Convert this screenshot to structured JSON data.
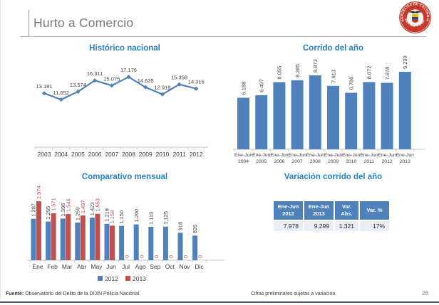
{
  "slide": {
    "title": "Hurto a Comercio",
    "seal": {
      "name": "República de Colombia",
      "top_text": "REPÚBLICA DE COLOMBIA",
      "bottom_text": "LIBERTAD Y ORDEN"
    },
    "footer": {
      "source_label": "Fuente:",
      "source_text": "Observatorio del Delito de la DIJIN Policía Nacional.",
      "note": "Cifras preliminares sujetas a variación.",
      "page_number": "26"
    }
  },
  "colors": {
    "accent_blue": "#2781C4",
    "bar_blue": "#4F81BD",
    "bar_red": "#C0504D",
    "label_dark": "#3F3F3F",
    "axis_gray": "#C6C6C6",
    "seal_red": "#C5392D"
  },
  "chart_data": [
    {
      "id": "historico-nacional",
      "type": "line",
      "title": "Histórico nacional",
      "categories": [
        "2003",
        "2004",
        "2005",
        "2006",
        "2007",
        "2008",
        "2009",
        "2010",
        "2011",
        "2012"
      ],
      "values": [
        13181,
        11652,
        13574,
        16311,
        15075,
        17176,
        14635,
        12918,
        15358,
        14316
      ],
      "point_labels": [
        "13.181",
        "11.652",
        "13.574",
        "16.311",
        "15.075",
        "17.176",
        "14.635",
        "12.918",
        "15.358",
        "14.316"
      ],
      "ylim": [
        0,
        18000
      ],
      "grid": false,
      "legend": "none",
      "line_color": "#4F81BD",
      "marker": "diamond"
    },
    {
      "id": "corrido-del-ano",
      "type": "bar",
      "title": "Corrido del año",
      "categories": [
        [
          "Ene-Jun",
          "2004"
        ],
        [
          "Ene-Jun",
          "2005"
        ],
        [
          "Ene-Jun",
          "2006"
        ],
        [
          "Ene-Jun",
          "2007"
        ],
        [
          "Ene-Jun",
          "2008"
        ],
        [
          "Ene-Jun",
          "2009"
        ],
        [
          "Ene-Jun",
          "2010"
        ],
        [
          "Ene-Jun",
          "2011"
        ],
        [
          "Ene-Jun",
          "2012"
        ],
        [
          "Ene-Jun",
          "2013"
        ]
      ],
      "values": [
        6188,
        6497,
        8055,
        8285,
        8873,
        7613,
        6786,
        8072,
        7978,
        9299
      ],
      "bar_labels": [
        "6.188",
        "6.497",
        "8.055",
        "8.285",
        "8.873",
        "7.613",
        "6.786",
        "8.072",
        "7.978",
        "9.299"
      ],
      "ylim": [
        0,
        9800
      ],
      "grid": false,
      "legend": "none",
      "bar_color": "#4F81BD",
      "label_rotation": 90
    },
    {
      "id": "comparativo-mensual",
      "type": "bar",
      "grouped": true,
      "title": "Comparativo mensual",
      "categories": [
        "Ene",
        "Feb",
        "Mar",
        "Abr",
        "May",
        "Jun",
        "Jul",
        "Ago",
        "Sep",
        "Oct",
        "Nov",
        "Dic"
      ],
      "series": [
        {
          "name": "2012",
          "color": "#4F81BD",
          "values": [
            1387,
            1295,
            1396,
            1259,
            1423,
            1218,
            1150,
            1200,
            1119,
            1125,
            918,
            826
          ],
          "labels": [
            "1.387",
            "1.295",
            "1.396",
            "1.259",
            "1.423",
            "1.218",
            "1.150",
            "1.200",
            "1.119",
            "1.125",
            "918",
            "826"
          ]
        },
        {
          "name": "2013",
          "color": "#C0504D",
          "values": [
            1974,
            1571,
            1546,
            1497,
            1553,
            1158,
            0,
            0,
            0,
            0,
            0,
            0
          ],
          "labels": [
            "1.974",
            "1.571",
            "1.546",
            "1.497",
            "1.553",
            "1.158",
            "0",
            "0",
            "0",
            "0",
            "0",
            "0"
          ]
        }
      ],
      "ylim": [
        0,
        2100
      ],
      "grid": false,
      "legend": "bottom"
    },
    {
      "id": "variacion-corrido-del-ano",
      "type": "table",
      "title": "Variación corrido del año",
      "headers": [
        [
          "Ene-Jun",
          "2012"
        ],
        [
          "Ene-Jun",
          "2013"
        ],
        [
          "Var.",
          "Abs."
        ],
        [
          "Var. %"
        ]
      ],
      "rows": [
        [
          "7.978",
          "9.299",
          "1.321",
          "17%"
        ]
      ],
      "header_bg": "#4F81BD",
      "header_color": "#FFFFFF"
    }
  ]
}
